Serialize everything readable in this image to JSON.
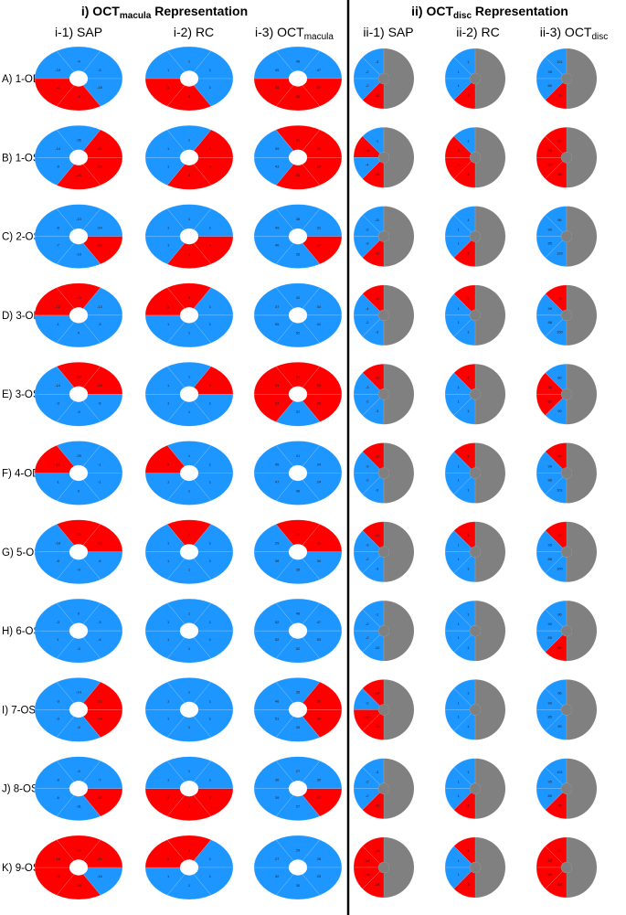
{
  "headers": {
    "macula": {
      "prefix": "i) OCT",
      "sub": "macula",
      "suffix": " Representation"
    },
    "disc": {
      "prefix": "ii) OCT",
      "sub": "disc",
      "suffix": " Representation"
    }
  },
  "columns": [
    {
      "main": "i-1) SAP",
      "sub": ""
    },
    {
      "main": "i-2) RC",
      "sub": ""
    },
    {
      "main": "i-3) OCT",
      "sub": "macula"
    },
    {
      "main": "ii-1) SAP",
      "sub": ""
    },
    {
      "main": "ii-2) RC",
      "sub": ""
    },
    {
      "main": "ii-3) OCT",
      "sub": "disc"
    }
  ],
  "colors": {
    "normal": "#1e96ff",
    "abnormal": "#ff0000",
    "unused": "#808080",
    "divider": "#000000"
  },
  "rows": [
    {
      "label": "A) 1-OD",
      "macula": [
        {
          "states": [
            "n",
            "n",
            "n",
            "a",
            "a",
            "n"
          ],
          "values": [
            "-4",
            "-3",
            "-18",
            "-9",
            "-6",
            "-15"
          ]
        },
        {
          "states": [
            "n",
            "n",
            "n",
            "a",
            "a",
            "n"
          ],
          "values": [
            "1",
            "1",
            "1",
            "3",
            "3",
            "1"
          ]
        },
        {
          "states": [
            "n",
            "n",
            "a",
            "a",
            "a",
            "n"
          ],
          "values": [
            "46",
            "47",
            "37",
            "35",
            "34",
            "45"
          ]
        }
      ],
      "disc": [
        {
          "states": [
            "n",
            "n",
            "n",
            "a"
          ],
          "values": [
            "-3",
            "-2",
            "-2",
            "-12"
          ]
        },
        {
          "states": [
            "n",
            "n",
            "n",
            "a"
          ],
          "values": [
            "1",
            "1",
            "1",
            "3"
          ]
        },
        {
          "states": [
            "n",
            "n",
            "n",
            "a"
          ],
          "values": [
            "101",
            "95",
            "80",
            "70"
          ]
        }
      ]
    },
    {
      "label": "B) 1-OS",
      "macula": [
        {
          "states": [
            "n",
            "a",
            "a",
            "a",
            "n",
            "n"
          ],
          "values": [
            "-26",
            "-21",
            "-20",
            "-24",
            "-9",
            "-14"
          ]
        },
        {
          "states": [
            "n",
            "a",
            "a",
            "a",
            "n",
            "n"
          ],
          "values": [
            "1",
            "3",
            "3",
            "3",
            "1",
            "1"
          ]
        },
        {
          "states": [
            "a",
            "a",
            "a",
            "a",
            "n",
            "n"
          ],
          "values": [
            "31",
            "31",
            "29",
            "30",
            "43",
            "39"
          ]
        }
      ],
      "disc": [
        {
          "states": [
            "n",
            "a",
            "n",
            "a"
          ],
          "values": [
            "-1",
            "-15",
            "-4",
            "-16"
          ]
        },
        {
          "states": [
            "n",
            "a",
            "a",
            "a"
          ],
          "values": [
            "1",
            "3",
            "3",
            "3"
          ]
        },
        {
          "states": [
            "a",
            "a",
            "a",
            "a"
          ],
          "values": [
            "62",
            "58",
            "57",
            "55"
          ]
        }
      ]
    },
    {
      "label": "C) 2-OS",
      "macula": [
        {
          "states": [
            "n",
            "n",
            "a",
            "n",
            "n",
            "n"
          ],
          "values": [
            "-13",
            "-24",
            "-22",
            "-19",
            "-7",
            "-8"
          ]
        },
        {
          "states": [
            "n",
            "n",
            "a",
            "a",
            "n",
            "n"
          ],
          "values": [
            "1",
            "1",
            "3",
            "3",
            "1",
            "1"
          ]
        },
        {
          "states": [
            "n",
            "n",
            "a",
            "n",
            "n",
            "n"
          ],
          "values": [
            "38",
            "31",
            "27",
            "26",
            "40",
            "49"
          ]
        }
      ],
      "disc": [
        {
          "states": [
            "n",
            "n",
            "n",
            "a"
          ],
          "values": [
            "-11",
            "-2",
            "-3",
            "-12"
          ]
        },
        {
          "states": [
            "n",
            "n",
            "n",
            "a"
          ],
          "values": [
            "1",
            "1",
            "1",
            "3"
          ]
        },
        {
          "states": [
            "n",
            "n",
            "n",
            "n"
          ],
          "values": [
            "96",
            "90",
            "85",
            "120"
          ]
        }
      ]
    },
    {
      "label": "D) 3-OD",
      "macula": [
        {
          "states": [
            "a",
            "n",
            "n",
            "n",
            "n",
            "a"
          ],
          "values": [
            "-16",
            "-13",
            "-3",
            "0",
            "-1",
            "-12"
          ]
        },
        {
          "states": [
            "a",
            "n",
            "n",
            "n",
            "n",
            "a"
          ],
          "values": [
            "3",
            "1",
            "1",
            "1",
            "1",
            "3"
          ]
        },
        {
          "states": [
            "n",
            "n",
            "n",
            "n",
            "n",
            "n"
          ],
          "values": [
            "42",
            "34",
            "41",
            "52",
            "55",
            "37"
          ]
        }
      ],
      "disc": [
        {
          "states": [
            "a",
            "n",
            "n",
            "n"
          ],
          "values": [
            "-12",
            "-4",
            "-2",
            "-3"
          ]
        },
        {
          "states": [
            "a",
            "n",
            "n",
            "n"
          ],
          "values": [
            "3",
            "1",
            "1",
            "1"
          ]
        },
        {
          "states": [
            "a",
            "n",
            "n",
            "n"
          ],
          "values": [
            "75",
            "99",
            "88",
            "100"
          ]
        }
      ]
    },
    {
      "label": "E) 3-OS",
      "macula": [
        {
          "states": [
            "a",
            "a",
            "n",
            "n",
            "n",
            "n"
          ],
          "values": [
            "-20",
            "-16",
            "-6",
            "-9",
            "-3",
            "-14"
          ]
        },
        {
          "states": [
            "n",
            "a",
            "n",
            "n",
            "n",
            "n"
          ],
          "values": [
            "1",
            "3",
            "1",
            "1",
            "1",
            "1"
          ]
        },
        {
          "states": [
            "a",
            "a",
            "a",
            "n",
            "a",
            "a"
          ],
          "values": [
            "34",
            "33",
            "29",
            "37",
            "24",
            "24"
          ]
        }
      ],
      "disc": [
        {
          "states": [
            "a",
            "n",
            "n",
            "n"
          ],
          "values": [
            "-12",
            "-3",
            "-2",
            "-3"
          ]
        },
        {
          "states": [
            "a",
            "n",
            "n",
            "n"
          ],
          "values": [
            "3",
            "1",
            "1",
            "1"
          ]
        },
        {
          "states": [
            "n",
            "a",
            "a",
            "n"
          ],
          "values": [
            "80",
            "56",
            "61",
            "90"
          ]
        }
      ]
    },
    {
      "label": "F) 4-OD",
      "macula": [
        {
          "states": [
            "n",
            "n",
            "n",
            "n",
            "n",
            "a"
          ],
          "values": [
            "-29",
            "-1",
            "-1",
            "0",
            "-1",
            "-15"
          ]
        },
        {
          "states": [
            "n",
            "n",
            "n",
            "n",
            "n",
            "a"
          ],
          "values": [
            "1",
            "1",
            "1",
            "1",
            "1",
            "3"
          ]
        },
        {
          "states": [
            "n",
            "n",
            "n",
            "n",
            "n",
            "n"
          ],
          "values": [
            "31",
            "24",
            "24",
            "46",
            "47",
            "45"
          ]
        }
      ],
      "disc": [
        {
          "states": [
            "a",
            "n",
            "n",
            "n"
          ],
          "values": [
            "-12",
            "-3",
            "-2",
            "-3"
          ]
        },
        {
          "states": [
            "a",
            "n",
            "n",
            "n"
          ],
          "values": [
            "3",
            "1",
            "1",
            "1"
          ]
        },
        {
          "states": [
            "a",
            "n",
            "n",
            "n"
          ],
          "values": [
            "70",
            "99",
            "88",
            "101"
          ]
        }
      ]
    },
    {
      "label": "G) 5-OS",
      "macula": [
        {
          "states": [
            "a",
            "a",
            "n",
            "n",
            "n",
            "n"
          ],
          "values": [
            "-22",
            "-20",
            "-6",
            "-9",
            "-8",
            "-18"
          ]
        },
        {
          "states": [
            "a",
            "n",
            "n",
            "n",
            "n",
            "n"
          ],
          "values": [
            "3",
            "1",
            "1",
            "1",
            "1",
            "1"
          ]
        },
        {
          "states": [
            "a",
            "a",
            "n",
            "n",
            "n",
            "n"
          ],
          "values": [
            "33",
            "31",
            "30",
            "35",
            "38",
            "29"
          ]
        }
      ],
      "disc": [
        {
          "states": [
            "a",
            "n",
            "n",
            "n"
          ],
          "values": [
            "-12",
            "-3",
            "-2",
            "-3"
          ]
        },
        {
          "states": [
            "a",
            "n",
            "n",
            "n"
          ],
          "values": [
            "3",
            "1",
            "1",
            "1"
          ]
        },
        {
          "states": [
            "a",
            "n",
            "n",
            "n"
          ],
          "values": [
            "70",
            "95",
            "88",
            "100"
          ]
        }
      ]
    },
    {
      "label": "H) 6-OS",
      "macula": [
        {
          "states": [
            "n",
            "n",
            "n",
            "n",
            "n",
            "n"
          ],
          "values": [
            "0",
            "-3",
            "-4",
            "-3",
            "1",
            "-3"
          ]
        },
        {
          "states": [
            "n",
            "n",
            "n",
            "n",
            "n",
            "n"
          ],
          "values": [
            "1",
            "1",
            "1",
            "1",
            "1",
            "1"
          ]
        },
        {
          "states": [
            "n",
            "n",
            "n",
            "n",
            "n",
            "n"
          ],
          "values": [
            "48",
            "47",
            "53",
            "52",
            "52",
            "52"
          ]
        }
      ],
      "disc": [
        {
          "states": [
            "n",
            "n",
            "n",
            "n"
          ],
          "values": [
            "-1",
            "-2",
            "-2",
            "-10"
          ]
        },
        {
          "states": [
            "n",
            "n",
            "n",
            "n"
          ],
          "values": [
            "1",
            "1",
            "1",
            "1"
          ]
        },
        {
          "states": [
            "n",
            "n",
            "n",
            "a"
          ],
          "values": [
            "96",
            "90",
            "85",
            "66"
          ]
        }
      ]
    },
    {
      "label": "I) 7-OS",
      "macula": [
        {
          "states": [
            "n",
            "a",
            "a",
            "n",
            "n",
            "n"
          ],
          "values": [
            "-14",
            "-21",
            "-14",
            "-5",
            "-3",
            "-3"
          ]
        },
        {
          "states": [
            "n",
            "n",
            "n",
            "n",
            "n",
            "n"
          ],
          "values": [
            "1",
            "1",
            "1",
            "1",
            "1",
            "1"
          ]
        },
        {
          "states": [
            "n",
            "a",
            "a",
            "n",
            "n",
            "n"
          ],
          "values": [
            "35",
            "32",
            "39",
            "45",
            "51",
            "46"
          ]
        }
      ],
      "disc": [
        {
          "states": [
            "a",
            "n",
            "a",
            "a"
          ],
          "values": [
            "-14",
            "-2",
            "-14",
            "-12"
          ]
        },
        {
          "states": [
            "n",
            "n",
            "n",
            "n"
          ],
          "values": [
            "1",
            "1",
            "1",
            "1"
          ]
        },
        {
          "states": [
            "n",
            "n",
            "n",
            "n"
          ],
          "values": [
            "96",
            "90",
            "85",
            "99"
          ]
        }
      ]
    },
    {
      "label": "J) 8-OS",
      "macula": [
        {
          "states": [
            "n",
            "n",
            "a",
            "n",
            "n",
            "n"
          ],
          "values": [
            "-9",
            "-7",
            "-20",
            "-31",
            "-6",
            "-9"
          ]
        },
        {
          "states": [
            "n",
            "n",
            "a",
            "a",
            "a",
            "n"
          ],
          "values": [
            "1",
            "1",
            "3",
            "3",
            "3",
            "1"
          ]
        },
        {
          "states": [
            "n",
            "n",
            "a",
            "n",
            "n",
            "n"
          ],
          "values": [
            "27",
            "30",
            "27",
            "27",
            "39",
            "36"
          ]
        }
      ],
      "disc": [
        {
          "states": [
            "n",
            "n",
            "n",
            "a"
          ],
          "values": [
            "-3",
            "-2",
            "-2",
            "-12"
          ]
        },
        {
          "states": [
            "n",
            "n",
            "n",
            "a"
          ],
          "values": [
            "1",
            "1",
            "1",
            "3"
          ]
        },
        {
          "states": [
            "n",
            "n",
            "n",
            "a"
          ],
          "values": [
            "101",
            "95",
            "80",
            "70"
          ]
        }
      ]
    },
    {
      "label": "K) 9-OS",
      "macula": [
        {
          "states": [
            "a",
            "a",
            "n",
            "a",
            "a",
            "a"
          ],
          "values": [
            "-22",
            "-21",
            "-16",
            "-24",
            "-23",
            "-16"
          ]
        },
        {
          "states": [
            "a",
            "n",
            "n",
            "n",
            "n",
            "a"
          ],
          "values": [
            "3",
            "1",
            "1",
            "1",
            "1",
            "3"
          ]
        },
        {
          "states": [
            "n",
            "n",
            "n",
            "n",
            "n",
            "n"
          ],
          "values": [
            "29",
            "28",
            "25",
            "30",
            "32",
            "27"
          ]
        }
      ],
      "disc": [
        {
          "states": [
            "a",
            "a",
            "a",
            "a"
          ],
          "values": [
            "-16",
            "-18",
            "-18",
            "-18"
          ]
        },
        {
          "states": [
            "a",
            "n",
            "n",
            "a"
          ],
          "values": [
            "3",
            "1",
            "1",
            "3"
          ]
        },
        {
          "states": [
            "a",
            "a",
            "a",
            "a"
          ],
          "values": [
            "57",
            "53",
            "55",
            "53"
          ]
        }
      ]
    }
  ]
}
